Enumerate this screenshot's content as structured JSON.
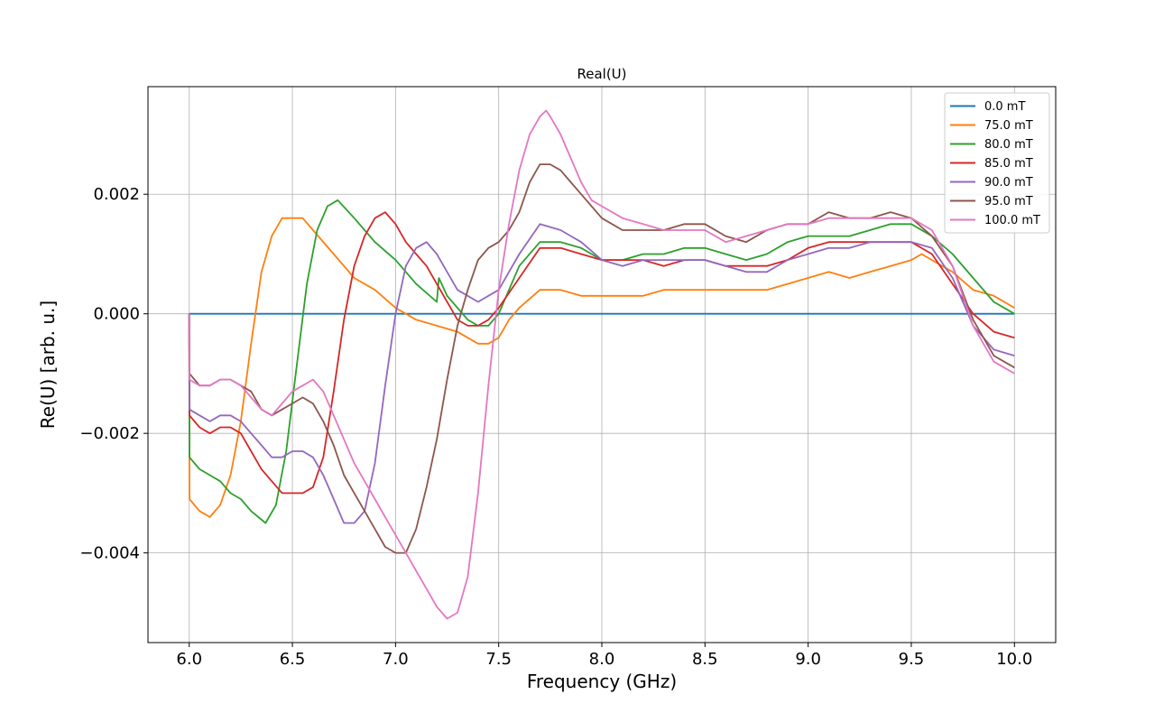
{
  "chart_data": {
    "type": "line",
    "title": "Real(U)",
    "xlabel": "Frequency (GHz)",
    "ylabel": "Re(U) [arb. u.]",
    "xlim": [
      5.8,
      10.2
    ],
    "ylim": [
      -0.0055,
      0.0038
    ],
    "xticks": [
      6.0,
      6.5,
      7.0,
      7.5,
      8.0,
      8.5,
      9.0,
      9.5,
      10.0
    ],
    "xtick_labels": [
      "6.0",
      "6.5",
      "7.0",
      "7.5",
      "8.0",
      "8.5",
      "9.0",
      "9.5",
      "10.0"
    ],
    "yticks": [
      -0.004,
      -0.002,
      0.0,
      0.002
    ],
    "ytick_labels": [
      "−0.004",
      "−0.002",
      "0.000",
      "0.002"
    ],
    "grid": true,
    "legend_position": "top-right",
    "series": [
      {
        "name": "0.0 mT",
        "color": "#1f77b4",
        "x": [
          6.0,
          10.0
        ],
        "y": [
          0.0,
          0.0
        ]
      },
      {
        "name": "75.0 mT",
        "color": "#ff7f0e",
        "x": [
          6.0,
          6.001,
          6.05,
          6.1,
          6.15,
          6.2,
          6.25,
          6.3,
          6.35,
          6.4,
          6.45,
          6.5,
          6.55,
          6.6,
          6.7,
          6.8,
          6.9,
          7.0,
          7.1,
          7.2,
          7.3,
          7.4,
          7.45,
          7.5,
          7.55,
          7.6,
          7.7,
          7.8,
          7.9,
          8.0,
          8.1,
          8.2,
          8.3,
          8.4,
          8.5,
          8.6,
          8.7,
          8.8,
          8.9,
          9.0,
          9.1,
          9.2,
          9.3,
          9.4,
          9.5,
          9.55,
          9.6,
          9.7,
          9.8,
          9.9,
          10.0
        ],
        "y": [
          0.0,
          -0.0031,
          -0.0033,
          -0.0034,
          -0.0032,
          -0.0027,
          -0.0018,
          -0.0005,
          0.0007,
          0.0013,
          0.0016,
          0.0016,
          0.0016,
          0.0014,
          0.001,
          0.0006,
          0.0004,
          0.0001,
          -0.0001,
          -0.0002,
          -0.0003,
          -0.0005,
          -0.0005,
          -0.0004,
          -0.0001,
          0.0001,
          0.0004,
          0.0004,
          0.0003,
          0.0003,
          0.0003,
          0.0003,
          0.0004,
          0.0004,
          0.0004,
          0.0004,
          0.0004,
          0.0004,
          0.0005,
          0.0006,
          0.0007,
          0.0006,
          0.0007,
          0.0008,
          0.0009,
          0.001,
          0.0009,
          0.0007,
          0.0004,
          0.0003,
          0.0001
        ]
      },
      {
        "name": "80.0 mT",
        "color": "#2ca02c",
        "x": [
          6.0,
          6.001,
          6.05,
          6.1,
          6.15,
          6.2,
          6.25,
          6.3,
          6.37,
          6.42,
          6.47,
          6.52,
          6.57,
          6.62,
          6.67,
          6.72,
          6.8,
          6.9,
          7.0,
          7.1,
          7.2,
          7.21,
          7.25,
          7.3,
          7.35,
          7.4,
          7.45,
          7.5,
          7.55,
          7.6,
          7.7,
          7.8,
          7.9,
          8.0,
          8.1,
          8.2,
          8.3,
          8.4,
          8.5,
          8.6,
          8.7,
          8.8,
          8.9,
          9.0,
          9.1,
          9.2,
          9.3,
          9.4,
          9.5,
          9.6,
          9.7,
          9.8,
          9.9,
          10.0
        ],
        "y": [
          0.0,
          -0.0024,
          -0.0026,
          -0.0027,
          -0.0028,
          -0.003,
          -0.0031,
          -0.0033,
          -0.0035,
          -0.0032,
          -0.0023,
          -0.0009,
          0.0005,
          0.0014,
          0.0018,
          0.0019,
          0.0016,
          0.0012,
          0.0009,
          0.0005,
          0.0002,
          0.0006,
          0.0003,
          0.0001,
          -0.0001,
          -0.0002,
          -0.0002,
          0.0,
          0.0004,
          0.0008,
          0.0012,
          0.0012,
          0.0011,
          0.0009,
          0.0009,
          0.001,
          0.001,
          0.0011,
          0.0011,
          0.001,
          0.0009,
          0.001,
          0.0012,
          0.0013,
          0.0013,
          0.0013,
          0.0014,
          0.0015,
          0.0015,
          0.0013,
          0.001,
          0.0006,
          0.0002,
          0.0
        ]
      },
      {
        "name": "85.0 mT",
        "color": "#d62728",
        "x": [
          6.0,
          6.001,
          6.05,
          6.1,
          6.15,
          6.2,
          6.25,
          6.3,
          6.35,
          6.4,
          6.45,
          6.5,
          6.55,
          6.6,
          6.65,
          6.7,
          6.75,
          6.8,
          6.85,
          6.9,
          6.95,
          7.0,
          7.05,
          7.1,
          7.15,
          7.2,
          7.3,
          7.35,
          7.4,
          7.45,
          7.5,
          7.6,
          7.7,
          7.8,
          7.9,
          8.0,
          8.1,
          8.2,
          8.3,
          8.4,
          8.5,
          8.6,
          8.7,
          8.8,
          8.9,
          9.0,
          9.1,
          9.2,
          9.3,
          9.4,
          9.5,
          9.6,
          9.7,
          9.8,
          9.9,
          10.0
        ],
        "y": [
          0.0,
          -0.0017,
          -0.0019,
          -0.002,
          -0.0019,
          -0.0019,
          -0.002,
          -0.0023,
          -0.0026,
          -0.0028,
          -0.003,
          -0.003,
          -0.003,
          -0.0029,
          -0.0024,
          -0.0013,
          -0.0001,
          0.0008,
          0.0013,
          0.0016,
          0.0017,
          0.0015,
          0.0012,
          0.001,
          0.0008,
          0.0005,
          -0.0001,
          -0.0002,
          -0.0002,
          -0.0001,
          0.0001,
          0.0006,
          0.0011,
          0.0011,
          0.001,
          0.0009,
          0.0009,
          0.0009,
          0.0008,
          0.0009,
          0.0009,
          0.0008,
          0.0008,
          0.0008,
          0.0009,
          0.0011,
          0.0012,
          0.0012,
          0.0012,
          0.0012,
          0.0012,
          0.001,
          0.0005,
          0.0,
          -0.0003,
          -0.0004
        ]
      },
      {
        "name": "90.0 mT",
        "color": "#9467bd",
        "x": [
          6.0,
          6.001,
          6.05,
          6.1,
          6.15,
          6.2,
          6.25,
          6.3,
          6.35,
          6.4,
          6.45,
          6.5,
          6.55,
          6.6,
          6.65,
          6.7,
          6.75,
          6.8,
          6.85,
          6.9,
          6.95,
          7.0,
          7.05,
          7.1,
          7.15,
          7.2,
          7.25,
          7.3,
          7.35,
          7.4,
          7.45,
          7.5,
          7.55,
          7.6,
          7.7,
          7.8,
          7.9,
          8.0,
          8.1,
          8.2,
          8.3,
          8.4,
          8.5,
          8.6,
          8.7,
          8.8,
          8.9,
          9.0,
          9.1,
          9.2,
          9.3,
          9.4,
          9.5,
          9.6,
          9.7,
          9.8,
          9.9,
          10.0
        ],
        "y": [
          0.0,
          -0.0016,
          -0.0017,
          -0.0018,
          -0.0017,
          -0.0017,
          -0.0018,
          -0.002,
          -0.0022,
          -0.0024,
          -0.0024,
          -0.0023,
          -0.0023,
          -0.0024,
          -0.0027,
          -0.0031,
          -0.0035,
          -0.0035,
          -0.0033,
          -0.0025,
          -0.0012,
          0.0,
          0.0008,
          0.0011,
          0.0012,
          0.001,
          0.0007,
          0.0004,
          0.0003,
          0.0002,
          0.0003,
          0.0004,
          0.0007,
          0.001,
          0.0015,
          0.0014,
          0.0012,
          0.0009,
          0.0008,
          0.0009,
          0.0009,
          0.0009,
          0.0009,
          0.0008,
          0.0007,
          0.0007,
          0.0009,
          0.001,
          0.0011,
          0.0011,
          0.0012,
          0.0012,
          0.0012,
          0.0011,
          0.0006,
          -0.0002,
          -0.0006,
          -0.0007
        ]
      },
      {
        "name": "95.0 mT",
        "color": "#8c564b",
        "x": [
          6.0,
          6.001,
          6.05,
          6.1,
          6.15,
          6.2,
          6.25,
          6.3,
          6.35,
          6.4,
          6.45,
          6.5,
          6.55,
          6.6,
          6.65,
          6.7,
          6.75,
          6.8,
          6.85,
          6.9,
          6.95,
          7.0,
          7.05,
          7.1,
          7.15,
          7.2,
          7.25,
          7.3,
          7.35,
          7.4,
          7.45,
          7.5,
          7.55,
          7.6,
          7.65,
          7.7,
          7.75,
          7.8,
          7.85,
          7.9,
          8.0,
          8.1,
          8.2,
          8.3,
          8.4,
          8.5,
          8.6,
          8.7,
          8.8,
          8.9,
          9.0,
          9.1,
          9.2,
          9.3,
          9.4,
          9.5,
          9.6,
          9.7,
          9.8,
          9.9,
          10.0
        ],
        "y": [
          0.0,
          -0.001,
          -0.0012,
          -0.0012,
          -0.0011,
          -0.0011,
          -0.0012,
          -0.0013,
          -0.0016,
          -0.0017,
          -0.0016,
          -0.0015,
          -0.0014,
          -0.0015,
          -0.0018,
          -0.0022,
          -0.0027,
          -0.003,
          -0.0033,
          -0.0036,
          -0.0039,
          -0.004,
          -0.004,
          -0.0036,
          -0.0029,
          -0.0021,
          -0.0011,
          -0.0002,
          0.0004,
          0.0009,
          0.0011,
          0.0012,
          0.0014,
          0.0017,
          0.0022,
          0.0025,
          0.0025,
          0.0024,
          0.0022,
          0.002,
          0.0016,
          0.0014,
          0.0014,
          0.0014,
          0.0015,
          0.0015,
          0.0013,
          0.0012,
          0.0014,
          0.0015,
          0.0015,
          0.0017,
          0.0016,
          0.0016,
          0.0017,
          0.0016,
          0.0013,
          0.0008,
          -0.0001,
          -0.0007,
          -0.0009
        ]
      },
      {
        "name": "100.0 mT",
        "color": "#e377c2",
        "x": [
          6.0,
          6.001,
          6.05,
          6.1,
          6.15,
          6.2,
          6.25,
          6.3,
          6.35,
          6.4,
          6.45,
          6.5,
          6.55,
          6.6,
          6.65,
          6.7,
          6.75,
          6.8,
          6.85,
          6.9,
          6.95,
          7.0,
          7.05,
          7.1,
          7.15,
          7.2,
          7.25,
          7.3,
          7.35,
          7.4,
          7.45,
          7.5,
          7.55,
          7.6,
          7.65,
          7.7,
          7.73,
          7.75,
          7.8,
          7.85,
          7.9,
          7.95,
          8.0,
          8.1,
          8.2,
          8.3,
          8.4,
          8.5,
          8.6,
          8.7,
          8.8,
          8.9,
          9.0,
          9.1,
          9.2,
          9.3,
          9.4,
          9.5,
          9.6,
          9.7,
          9.8,
          9.9,
          10.0
        ],
        "y": [
          0.0,
          -0.0011,
          -0.0012,
          -0.0012,
          -0.0011,
          -0.0011,
          -0.0012,
          -0.0014,
          -0.0016,
          -0.0017,
          -0.0015,
          -0.0013,
          -0.0012,
          -0.0011,
          -0.0013,
          -0.0017,
          -0.0021,
          -0.0025,
          -0.0028,
          -0.0031,
          -0.0034,
          -0.0037,
          -0.004,
          -0.0043,
          -0.0046,
          -0.0049,
          -0.0051,
          -0.005,
          -0.0044,
          -0.003,
          -0.0012,
          0.0004,
          0.0015,
          0.0024,
          0.003,
          0.0033,
          0.0034,
          0.0033,
          0.003,
          0.0026,
          0.0022,
          0.0019,
          0.0018,
          0.0016,
          0.0015,
          0.0014,
          0.0014,
          0.0014,
          0.0012,
          0.0013,
          0.0014,
          0.0015,
          0.0015,
          0.0016,
          0.0016,
          0.0016,
          0.0016,
          0.0016,
          0.0014,
          0.0008,
          -0.0002,
          -0.0008,
          -0.001
        ]
      }
    ]
  }
}
